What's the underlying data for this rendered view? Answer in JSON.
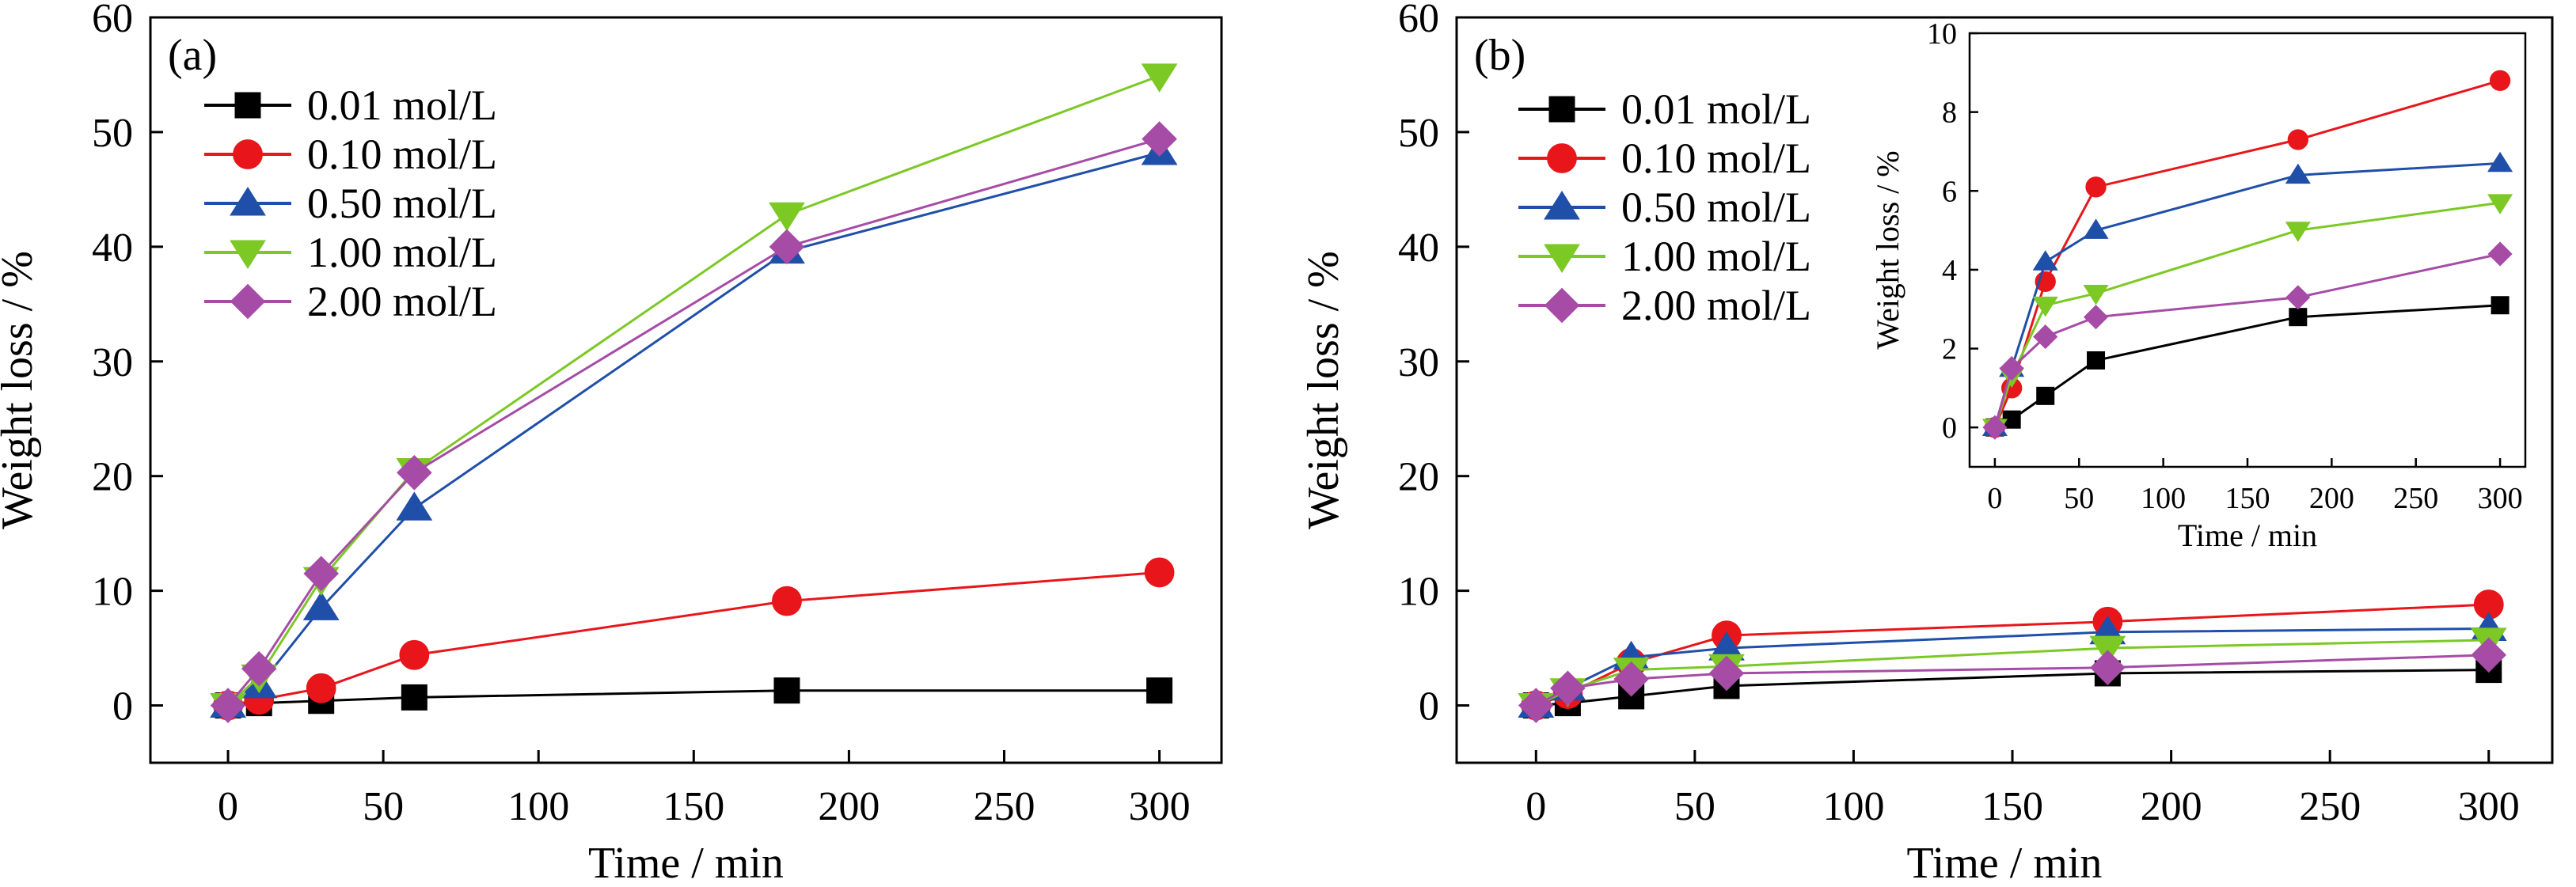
{
  "chart_data": [
    {
      "panel": "(a)",
      "type": "line",
      "xlabel": "Time / min",
      "ylabel": "Weight loss / %",
      "xlim": [
        -25,
        320
      ],
      "ylim": [
        -5,
        60
      ],
      "xticks": [
        0,
        50,
        100,
        150,
        200,
        250,
        300
      ],
      "yticks": [
        0,
        10,
        20,
        30,
        40,
        50,
        60
      ],
      "legend_position": "top-left",
      "grid": false,
      "x": [
        0,
        10,
        30,
        60,
        180,
        300
      ],
      "series": [
        {
          "name": "0.01 mol/L",
          "color": "#000000",
          "marker": "square",
          "values": [
            0,
            0.2,
            0.4,
            0.7,
            1.3,
            1.3
          ]
        },
        {
          "name": "0.10 mol/L",
          "color": "#e8161b",
          "marker": "circle",
          "values": [
            0,
            0.5,
            1.5,
            4.4,
            9.1,
            11.6
          ]
        },
        {
          "name": "0.50 mol/L",
          "color": "#1f4fa8",
          "marker": "triangle-up",
          "values": [
            0,
            1.7,
            8.5,
            17.2,
            39.6,
            48.2
          ]
        },
        {
          "name": "1.00 mol/L",
          "color": "#7cc825",
          "marker": "triangle-down",
          "values": [
            0,
            2.5,
            11.0,
            20.5,
            42.8,
            54.9
          ]
        },
        {
          "name": "2.00 mol/L",
          "color": "#a64ca6",
          "marker": "diamond",
          "values": [
            0,
            3.2,
            11.5,
            20.3,
            40.0,
            49.4
          ]
        }
      ]
    },
    {
      "panel": "(b)",
      "type": "line",
      "xlabel": "Time / min",
      "ylabel": "Weight loss / %",
      "xlim": [
        -25,
        320
      ],
      "ylim": [
        -5,
        60
      ],
      "xticks": [
        0,
        50,
        100,
        150,
        200,
        250,
        300
      ],
      "yticks": [
        0,
        10,
        20,
        30,
        40,
        50,
        60
      ],
      "legend_position": "top-left",
      "grid": false,
      "x": [
        0,
        10,
        30,
        60,
        180,
        300
      ],
      "series": [
        {
          "name": "0.01 mol/L",
          "color": "#000000",
          "marker": "square",
          "values": [
            0,
            0.2,
            0.8,
            1.7,
            2.8,
            3.1
          ]
        },
        {
          "name": "0.10 mol/L",
          "color": "#e8161b",
          "marker": "circle",
          "values": [
            0,
            1.0,
            3.7,
            6.1,
            7.3,
            8.8
          ]
        },
        {
          "name": "0.50 mol/L",
          "color": "#1f4fa8",
          "marker": "triangle-up",
          "values": [
            0,
            1.5,
            4.2,
            5.0,
            6.4,
            6.7
          ]
        },
        {
          "name": "1.00 mol/L",
          "color": "#7cc825",
          "marker": "triangle-down",
          "values": [
            0,
            1.3,
            3.1,
            3.4,
            5.0,
            5.7
          ]
        },
        {
          "name": "2.00 mol/L",
          "color": "#a64ca6",
          "marker": "diamond",
          "values": [
            0,
            1.5,
            2.3,
            2.8,
            3.3,
            4.4
          ]
        }
      ],
      "inset": {
        "type": "line",
        "xlabel": "Time / min",
        "ylabel": "Weight loss / %",
        "xlim": [
          -15,
          315
        ],
        "ylim": [
          -1,
          10
        ],
        "xticks": [
          0,
          50,
          100,
          150,
          200,
          250,
          300
        ],
        "yticks": [
          0,
          2,
          4,
          6,
          8,
          10
        ]
      }
    }
  ]
}
